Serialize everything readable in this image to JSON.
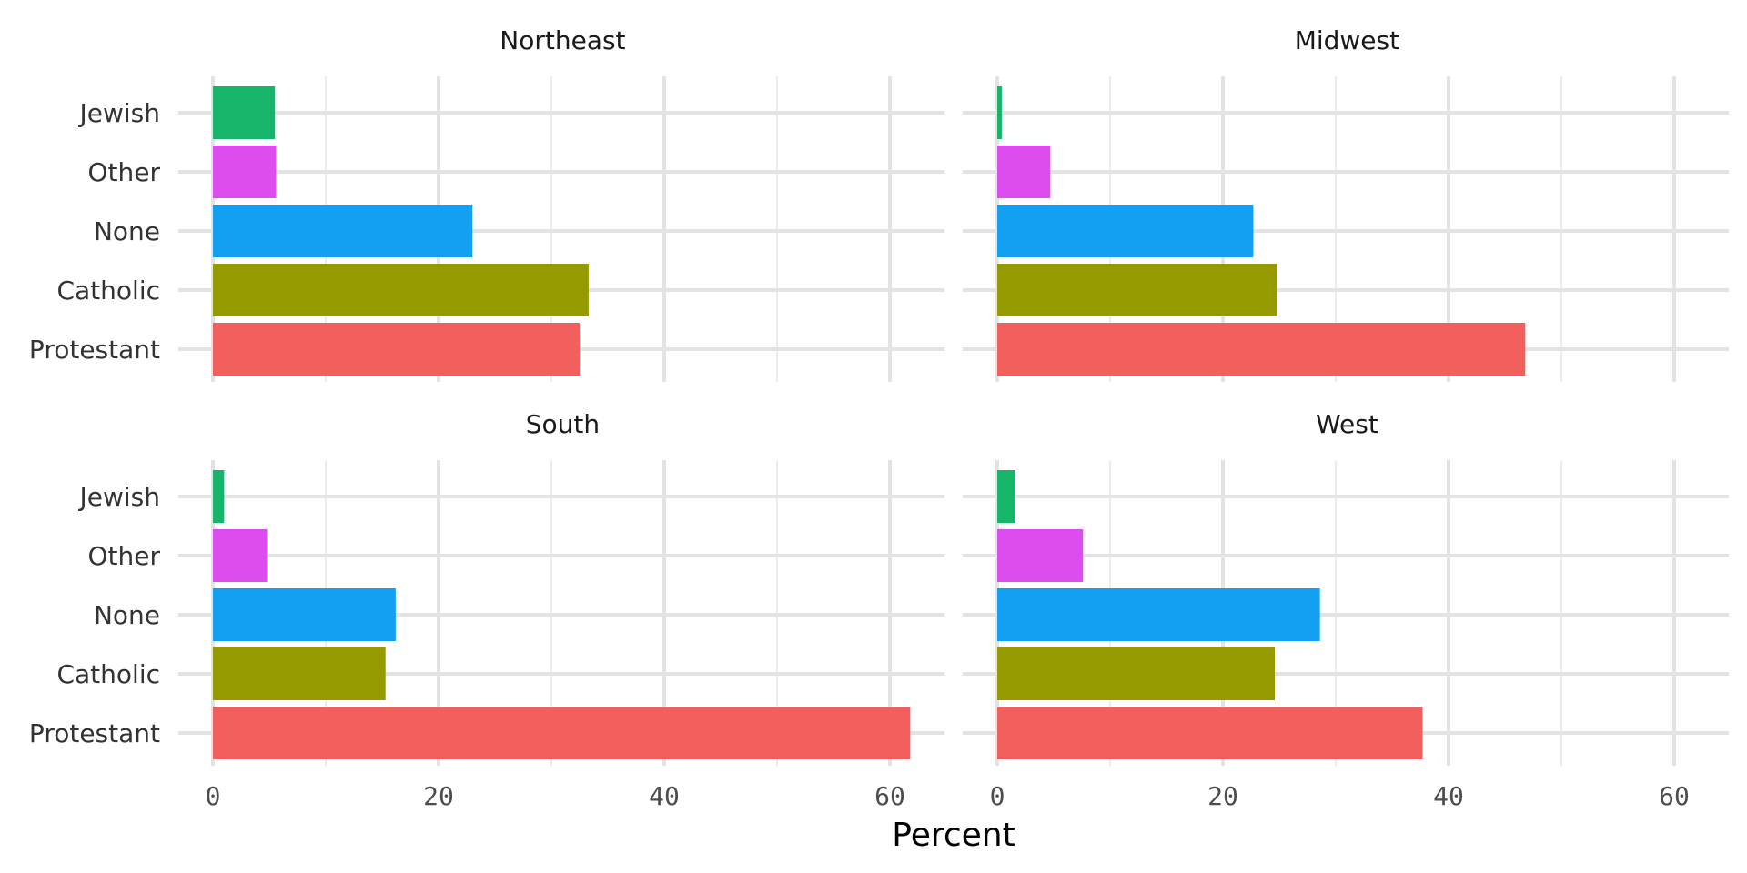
{
  "chart_data": {
    "type": "bar",
    "orientation": "horizontal",
    "layout": "facet-grid 2x2",
    "xlabel": "Percent",
    "xlim": [
      0,
      64
    ],
    "x_ticks": [
      "0",
      "20",
      "40",
      "60"
    ],
    "categories": [
      "Protestant",
      "Catholic",
      "None",
      "Other",
      "Jewish"
    ],
    "colors": {
      "Protestant": "#F25F5C",
      "Catholic": "#949A00",
      "None": "#14A0F0",
      "Other": "#DD4CEF",
      "Jewish": "#17B56A"
    },
    "facets": [
      {
        "name": "Northeast",
        "values": {
          "Protestant": 32.5,
          "Catholic": 33.3,
          "None": 23.0,
          "Other": 5.6,
          "Jewish": 5.5
        }
      },
      {
        "name": "Midwest",
        "values": {
          "Protestant": 46.8,
          "Catholic": 24.8,
          "None": 22.7,
          "Other": 4.7,
          "Jewish": 0.4
        }
      },
      {
        "name": "South",
        "values": {
          "Protestant": 61.8,
          "Catholic": 15.3,
          "None": 16.2,
          "Other": 4.8,
          "Jewish": 1.0
        }
      },
      {
        "name": "West",
        "values": {
          "Protestant": 37.7,
          "Catholic": 24.6,
          "None": 28.6,
          "Other": 7.6,
          "Jewish": 1.6
        }
      }
    ]
  }
}
